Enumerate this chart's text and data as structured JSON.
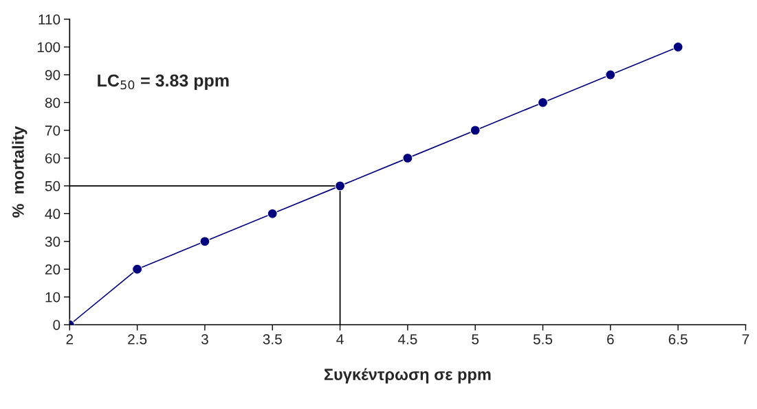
{
  "chart_data": {
    "type": "line",
    "xlabel": "Συγκέντρωση σε ppm",
    "ylabel": "%  mortality",
    "annotations": [
      "LC$_{50}$ = 3.83 ppm"
    ],
    "x": [
      2,
      2.5,
      3,
      3.5,
      4,
      4.5,
      5,
      5.5,
      6,
      6.5
    ],
    "series": [
      {
        "color": "#00007f",
        "values": [
          0,
          20,
          30,
          40,
          50,
          60,
          70,
          80,
          90,
          100
        ]
      }
    ],
    "marker": "circle",
    "line_style": "solid",
    "xlim": [
      2,
      7
    ],
    "xticks": [
      2,
      2.5,
      3,
      3.5,
      4,
      4.5,
      5,
      5.5,
      6,
      6.5,
      7
    ],
    "ylim": [
      0,
      110
    ],
    "yticks": [
      0,
      10,
      20,
      30,
      40,
      50,
      60,
      70,
      80,
      90,
      100,
      110
    ],
    "ref_lines": [
      {
        "axis": "y",
        "value": 50,
        "color": "#000000"
      },
      {
        "axis": "x",
        "value": 4,
        "color": "#000000"
      }
    ],
    "grid": false
  }
}
